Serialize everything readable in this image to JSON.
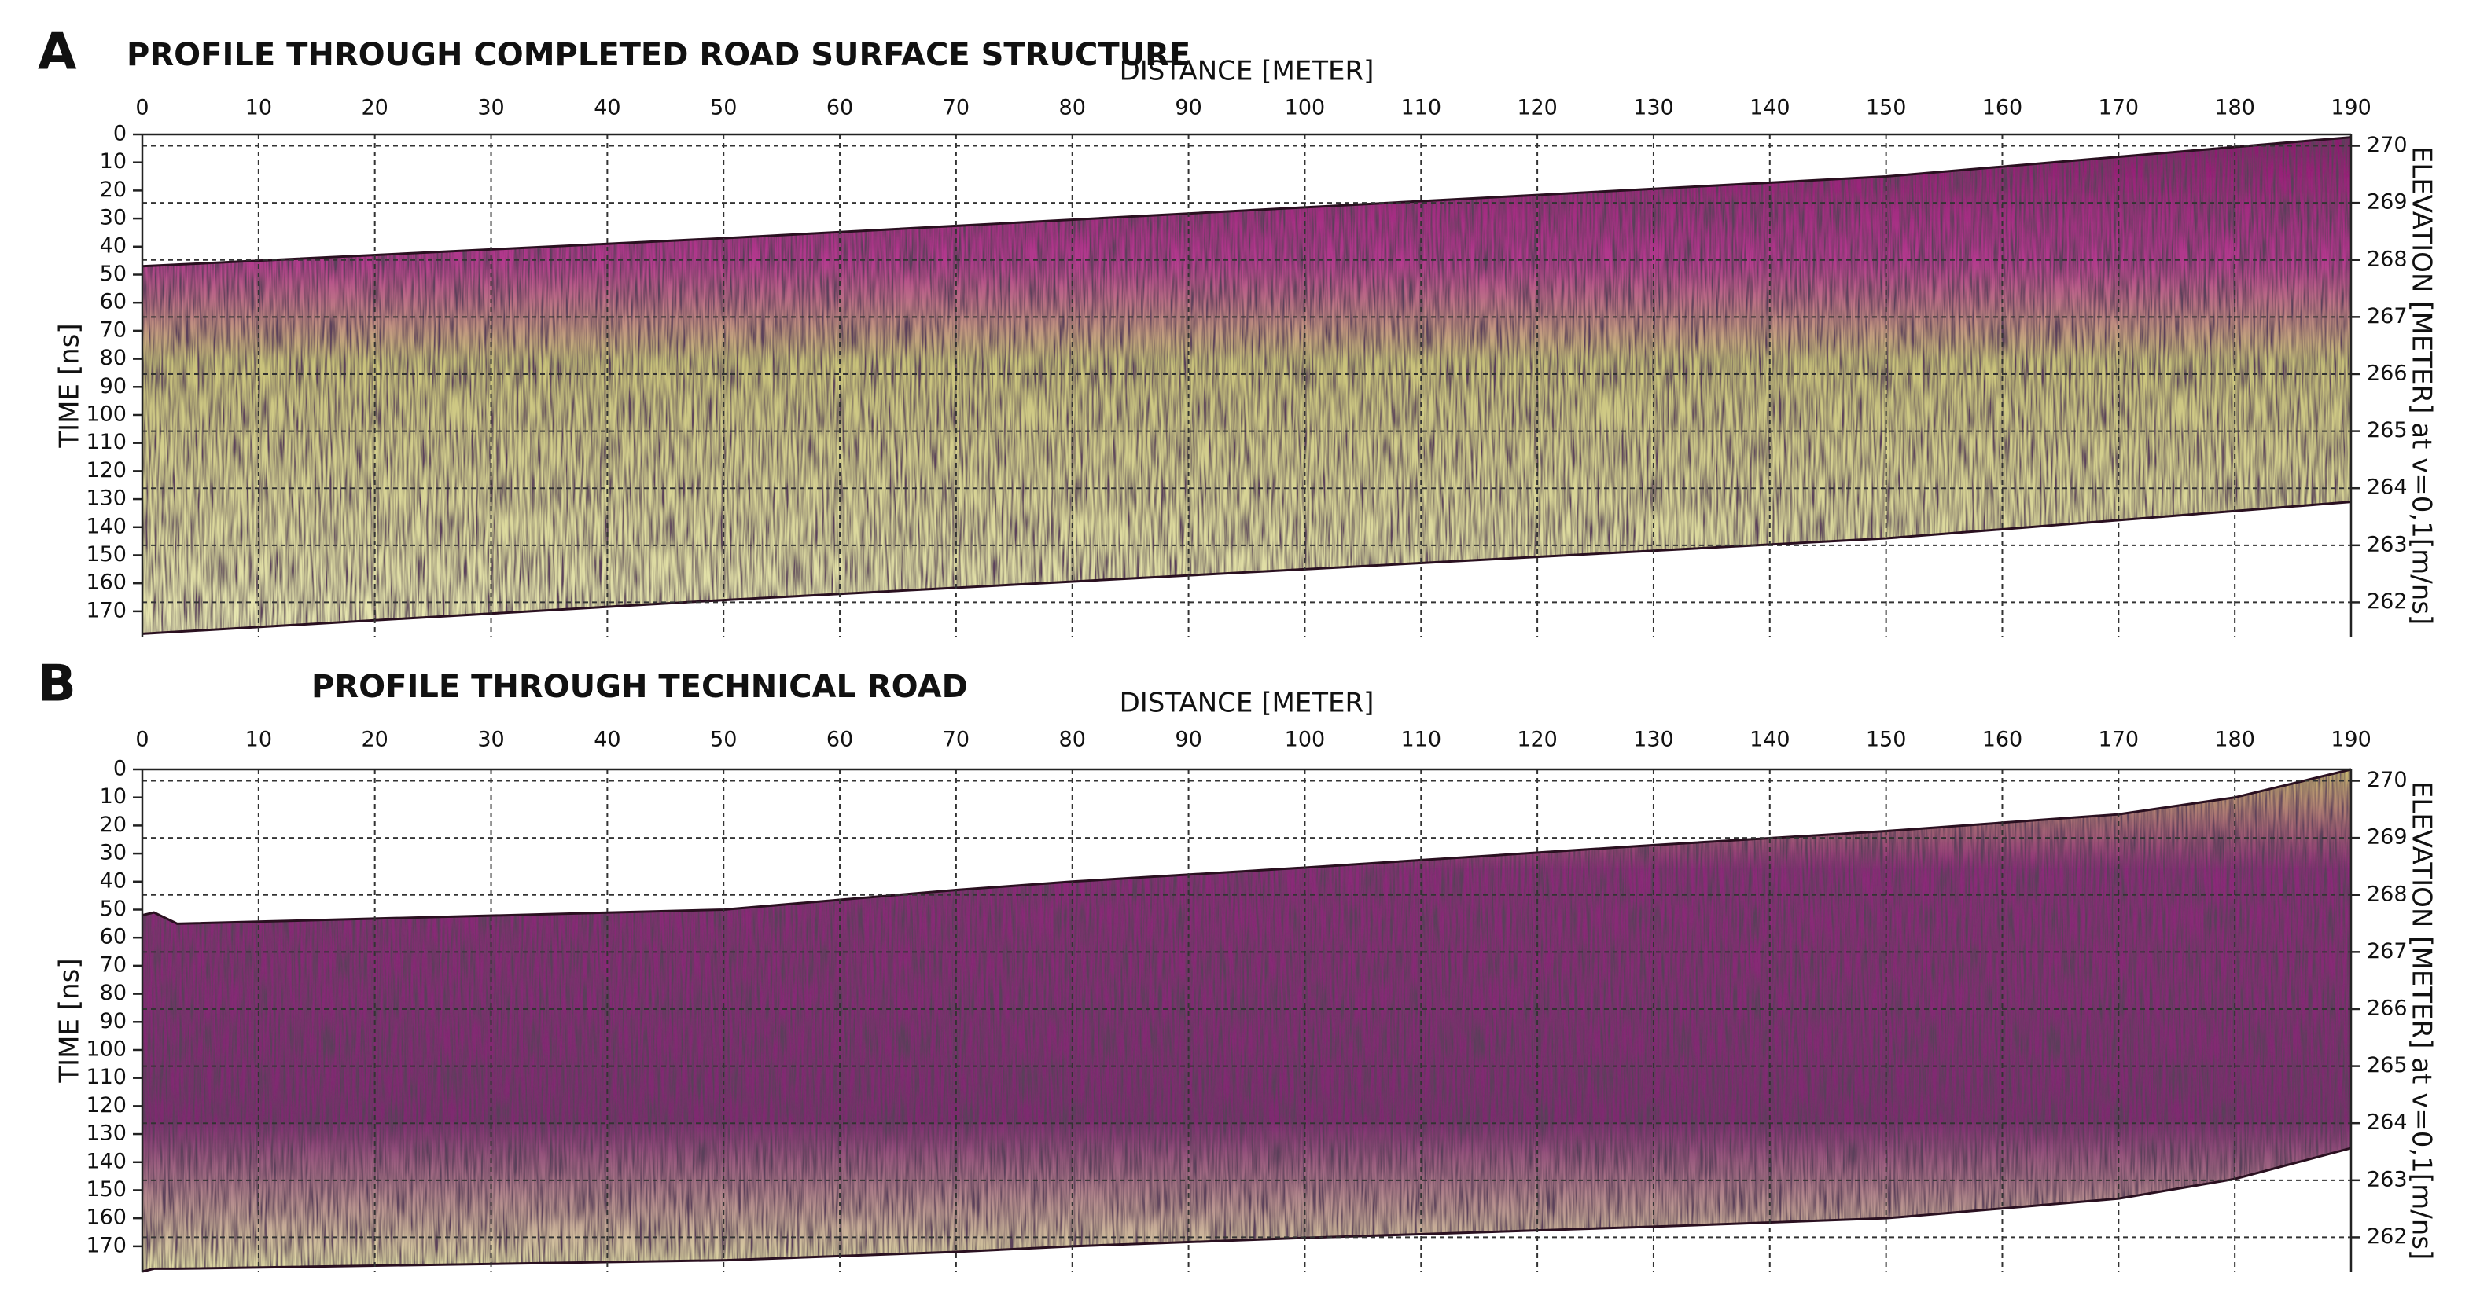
{
  "chart_data": [
    {
      "type": "radargram",
      "label": "A",
      "title": "PROFILE THROUGH COMPLETED ROAD SURFACE STRUCTURE",
      "xlabel": "DISTANCE [METER]",
      "ylabel": "TIME [ns]",
      "y2label": "ELEVATION [METER] at v=0,1[m/ns]",
      "xlim": [
        0,
        190
      ],
      "xticks": [
        0,
        10,
        20,
        30,
        40,
        50,
        60,
        70,
        80,
        90,
        100,
        110,
        120,
        130,
        140,
        150,
        160,
        170,
        180,
        190
      ],
      "ylim": [
        0,
        179
      ],
      "yticks": [
        0,
        10,
        20,
        30,
        40,
        50,
        60,
        70,
        80,
        90,
        100,
        110,
        120,
        130,
        140,
        150,
        160,
        170
      ],
      "y2lim": [
        270.2,
        261.4
      ],
      "y2ticks": [
        270,
        269,
        268,
        267,
        266,
        265,
        264,
        263,
        262
      ],
      "grid": true,
      "x": [
        0,
        50,
        100,
        150,
        190
      ],
      "top": [
        47,
        37,
        26,
        15,
        1
      ],
      "bottom": [
        178,
        166,
        155,
        144,
        131
      ]
    },
    {
      "type": "radargram",
      "label": "B",
      "title": "PROFILE THROUGH TECHNICAL ROAD",
      "xlabel": "DISTANCE [METER]",
      "ylabel": "TIME [ns]",
      "y2label": "ELEVATION [METER] at v=0,1[m/ns]",
      "xlim": [
        0,
        190
      ],
      "xticks": [
        0,
        10,
        20,
        30,
        40,
        50,
        60,
        70,
        80,
        90,
        100,
        110,
        120,
        130,
        140,
        150,
        160,
        170,
        180,
        190
      ],
      "ylim": [
        0,
        179
      ],
      "yticks": [
        0,
        10,
        20,
        30,
        40,
        50,
        60,
        70,
        80,
        90,
        100,
        110,
        120,
        130,
        140,
        150,
        160,
        170
      ],
      "y2lim": [
        270.2,
        261.4
      ],
      "y2ticks": [
        270,
        269,
        268,
        267,
        266,
        265,
        264,
        263,
        262
      ],
      "grid": true,
      "x": [
        0,
        1,
        3,
        50,
        70,
        80,
        100,
        130,
        150,
        170,
        180,
        190
      ],
      "top": [
        52,
        51,
        55,
        50,
        43,
        40,
        35,
        27,
        22,
        16,
        10,
        0
      ],
      "bottom": [
        179,
        178,
        178,
        175,
        172,
        170,
        167,
        163,
        160,
        153,
        146,
        135
      ]
    }
  ]
}
